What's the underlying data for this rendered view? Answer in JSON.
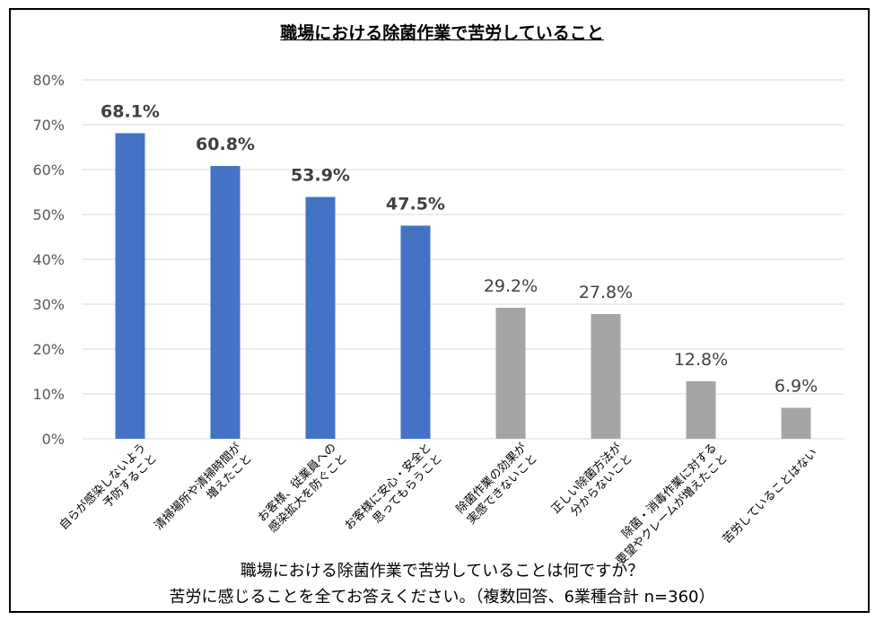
{
  "chart_data": {
    "type": "bar",
    "title": "職場における除菌作業で苦労していること",
    "categories": [
      [
        "自らが感染しないよう",
        "予防すること"
      ],
      [
        "清掃場所や清掃時間が",
        "増えたこと"
      ],
      [
        "お客様、従業員への",
        "感染拡大を防ぐこと"
      ],
      [
        "お客様に安心・安全と",
        "思ってもらうこと"
      ],
      [
        "除菌作業の効果が",
        "実感できないこと"
      ],
      [
        "正しい除菌方法が",
        "分からないこと"
      ],
      [
        "除菌・消毒作業に対する",
        "要望やクレームが増えたこと"
      ],
      [
        "苦労していることはない"
      ]
    ],
    "values": [
      68.1,
      60.8,
      53.9,
      47.5,
      29.2,
      27.8,
      12.8,
      6.9
    ],
    "value_labels": [
      "68.1%",
      "60.8%",
      "53.9%",
      "47.5%",
      "29.2%",
      "27.8%",
      "12.8%",
      "6.9%"
    ],
    "highlight": [
      true,
      true,
      true,
      true,
      false,
      false,
      false,
      false
    ],
    "ylim": [
      0,
      80
    ],
    "yticks": [
      0,
      10,
      20,
      30,
      40,
      50,
      60,
      70,
      80
    ],
    "ytick_labels": [
      "0%",
      "10%",
      "20%",
      "30%",
      "40%",
      "50%",
      "60%",
      "70%",
      "80%"
    ],
    "grid": true,
    "colors": {
      "highlight": "#4472C4",
      "normal": "#A5A5A5",
      "grid": "#D9D9D9"
    }
  },
  "footnote": {
    "line1": "職場における除菌作業で苦労していることは何ですか？",
    "line2": "苦労に感じることを全てお答えください。（複数回答、6業種合計 n=360）"
  }
}
